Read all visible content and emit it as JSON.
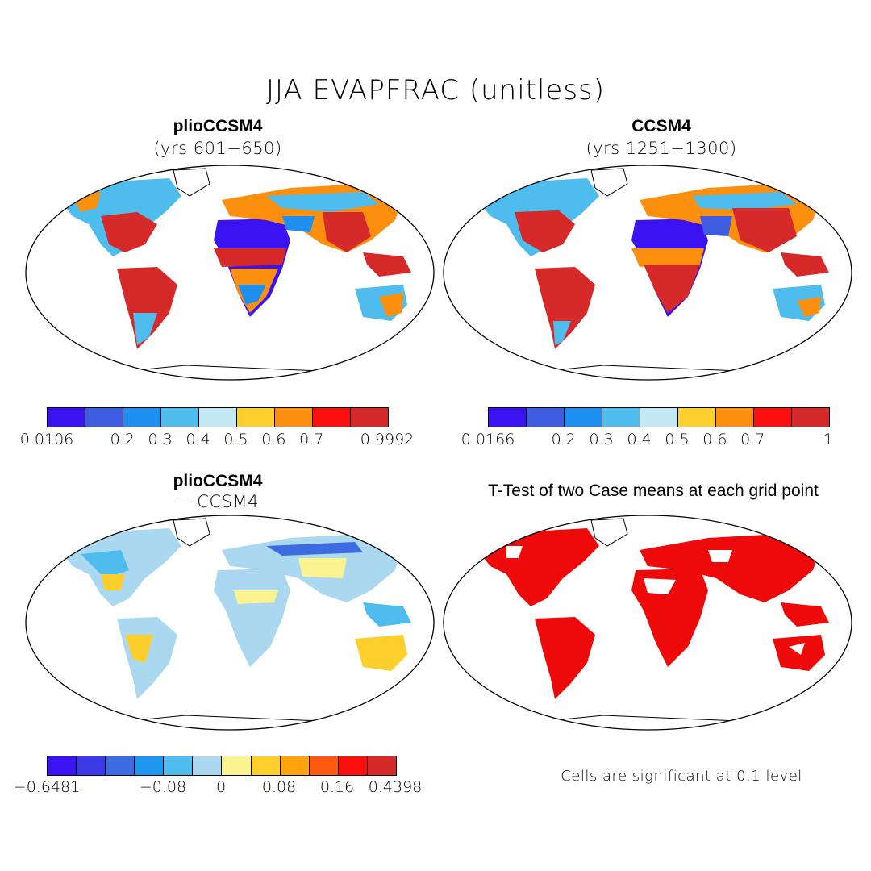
{
  "title": "JJA EVAPFRAC (unitless)",
  "panels": {
    "top_left": {
      "title": "plioCCSM4",
      "subtitle": "(yrs 601−650)"
    },
    "top_right": {
      "title": "CCSM4",
      "subtitle": "(yrs 1251−1300)"
    },
    "bottom_left": {
      "title": "plioCCSM4",
      "subtitle": "− CCSM4"
    },
    "bottom_right": {
      "title": "T-Test of two Case means at each grid point",
      "note": "Cells are significant at 0.1 level"
    }
  },
  "colorbars": {
    "top_left": {
      "colors": [
        "#3b12f2",
        "#3d5ce0",
        "#1e8fef",
        "#4ebdee",
        "#c5e8f5",
        "#fccf2c",
        "#fc8f0e",
        "#fb0f0f",
        "#d62a2a"
      ],
      "labels": [
        "0.0106",
        "0.2",
        "0.3",
        "0.4",
        "0.5",
        "0.6",
        "0.7",
        "0.9992"
      ],
      "label_index": [
        0,
        2,
        3,
        4,
        5,
        6,
        7,
        9
      ]
    },
    "top_right": {
      "colors": [
        "#3b12f2",
        "#3d5ce0",
        "#1e8fef",
        "#4ebdee",
        "#c5e8f5",
        "#fccf2c",
        "#fc8f0e",
        "#fb0f0f",
        "#d62a2a"
      ],
      "labels": [
        "0.0166",
        "0.2",
        "0.3",
        "0.4",
        "0.5",
        "0.6",
        "0.7",
        "1"
      ],
      "label_index": [
        0,
        2,
        3,
        4,
        5,
        6,
        7,
        9
      ]
    },
    "bottom_left": {
      "colors": [
        "#3b12f2",
        "#3a3be6",
        "#3d6ce2",
        "#1e96ef",
        "#4ebdee",
        "#aad8f0",
        "#fbf390",
        "#fccf2c",
        "#fca30e",
        "#fb5a0f",
        "#fb0f0f",
        "#d62a2a"
      ],
      "labels": [
        "−0.6481",
        "−0.08",
        "0",
        "0.08",
        "0.16",
        "0.4398"
      ],
      "label_index": [
        0,
        4,
        6,
        8,
        10,
        12
      ]
    }
  },
  "colors": {
    "land_outline": "#000000",
    "significance": "#ee0a0a"
  }
}
